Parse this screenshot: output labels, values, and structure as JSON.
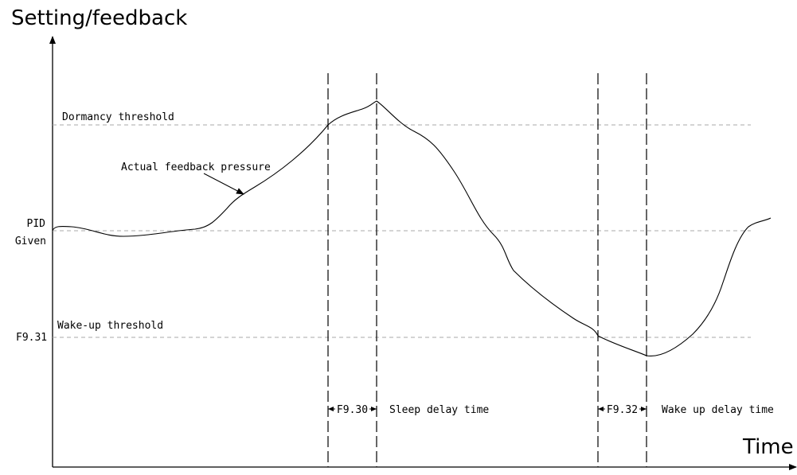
{
  "diagram": {
    "y_axis_label": "Setting/feedback",
    "x_axis_label": "Time",
    "levels": {
      "dormancy_threshold": "Dormancy threshold",
      "pid_given_line1": "PID",
      "pid_given_line2": "Given",
      "wakeup_threshold": "Wake-up threshold",
      "wakeup_param": "F9.31"
    },
    "curve_label": "Actual feedback pressure",
    "intervals": {
      "sleep_param": "F9.30",
      "sleep_label": "Sleep delay time",
      "wake_param": "F9.32",
      "wake_label": "Wake up delay time"
    },
    "colors": {
      "line": "#000000",
      "guide": "#aaaaaa"
    }
  }
}
